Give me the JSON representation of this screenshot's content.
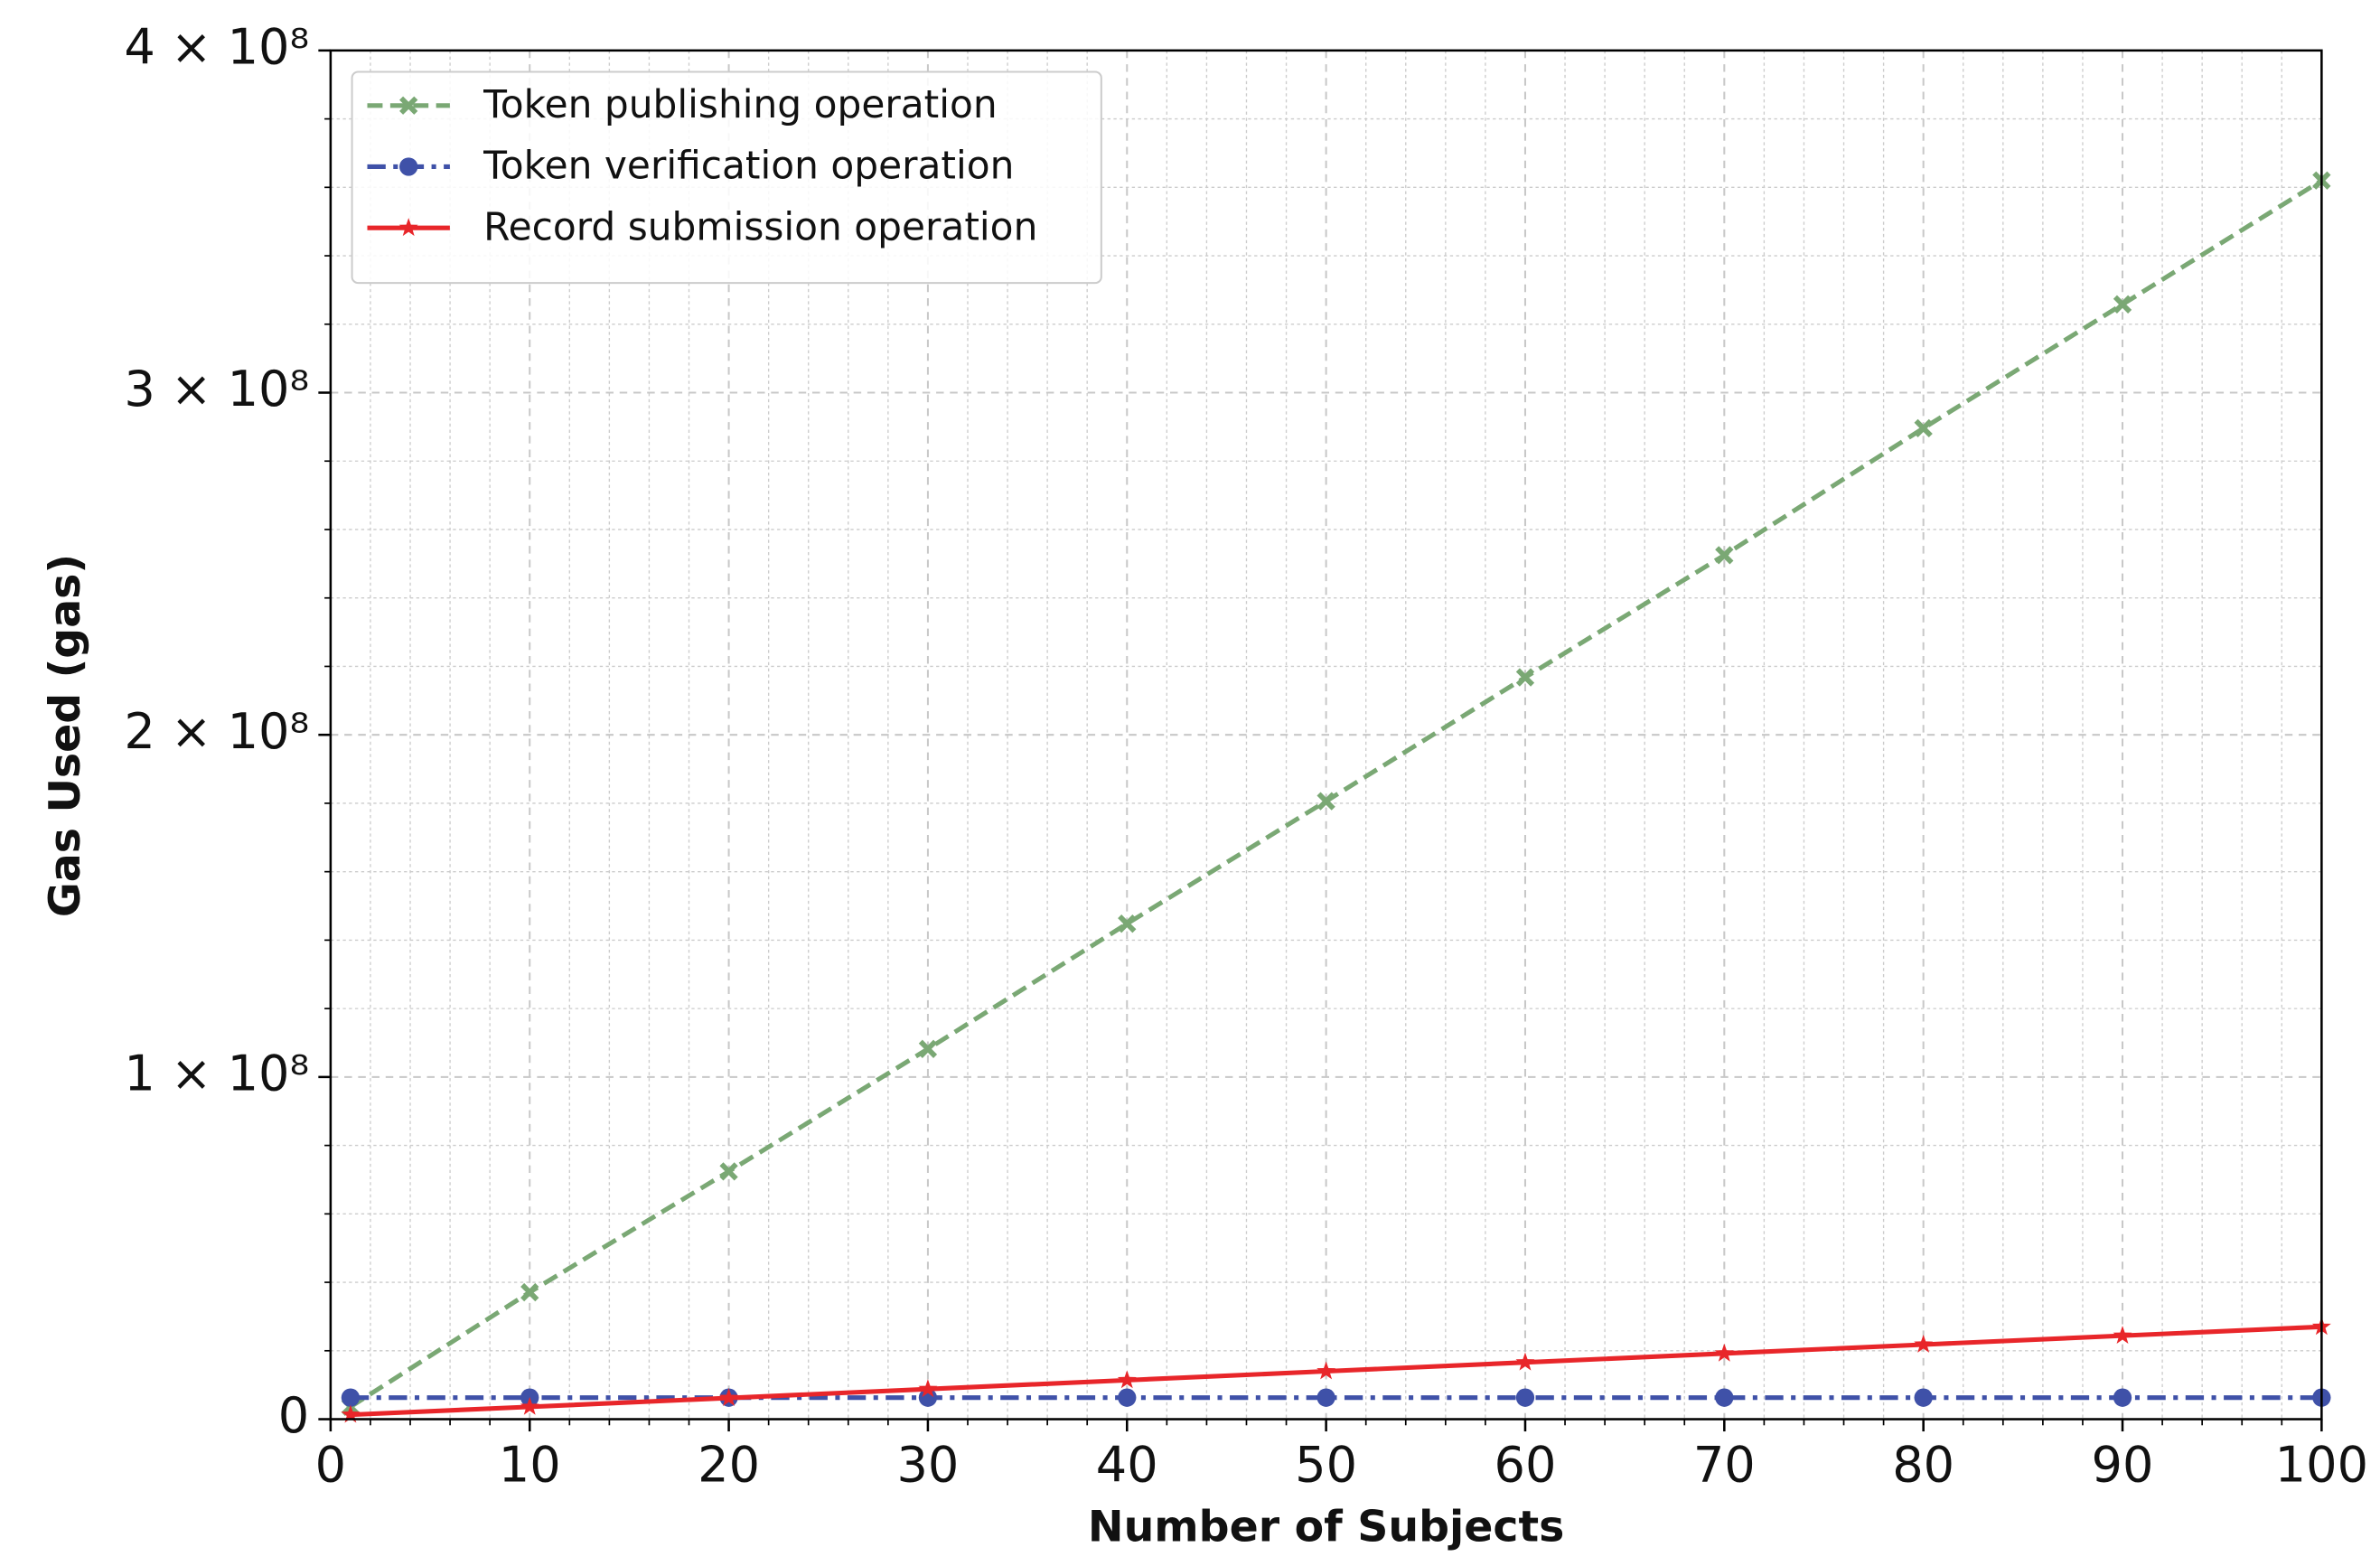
{
  "chart_data": {
    "type": "line",
    "x_label": "Number of Subjects",
    "y_label": "Gas Used (gas)",
    "x": [
      1,
      10,
      20,
      30,
      40,
      50,
      60,
      70,
      80,
      90,
      100
    ],
    "series": [
      {
        "name": "Token publishing operation",
        "color": "#7aa874",
        "style": "dashed",
        "marker": "x",
        "values": [
          3620000,
          37100000,
          72400000,
          108200000,
          144800000,
          180600000,
          216800000,
          252500000,
          289600000,
          325800000,
          362000000
        ]
      },
      {
        "name": "Token verification operation",
        "color": "#3f51a8",
        "style": "dashdot",
        "marker": "circle",
        "values": [
          6300000,
          6300000,
          6300000,
          6300000,
          6300000,
          6300000,
          6300000,
          6300000,
          6300000,
          6300000,
          6300000
        ]
      },
      {
        "name": "Record submission operation",
        "color": "#e8262a",
        "style": "solid",
        "marker": "star",
        "values": [
          1300000,
          3600000,
          6200000,
          8800000,
          11400000,
          14000000,
          16600000,
          19200000,
          21800000,
          24400000,
          27000000
        ]
      }
    ],
    "xlim": [
      0,
      100
    ],
    "ylim": [
      0,
      400000000
    ],
    "xticks": [
      0,
      10,
      20,
      30,
      40,
      50,
      60,
      70,
      80,
      90,
      100
    ],
    "yticks": [
      0,
      {
        "value": 100000000,
        "label": "1 × 10⁸"
      },
      {
        "value": 200000000,
        "label": "2 × 10⁸"
      },
      {
        "value": 300000000,
        "label": "3 × 10⁸"
      },
      {
        "value": 400000000,
        "label": "4 × 10⁸"
      }
    ],
    "x_minor_ticks": [
      2,
      4,
      6,
      8,
      12,
      14,
      16,
      18,
      22,
      24,
      26,
      28,
      32,
      34,
      36,
      38,
      42,
      44,
      46,
      48,
      52,
      54,
      56,
      58,
      62,
      64,
      66,
      68,
      72,
      74,
      76,
      78,
      82,
      84,
      86,
      88,
      92,
      94,
      96,
      98
    ],
    "y_minor_ticks": [
      20000000,
      40000000,
      60000000,
      80000000,
      120000000,
      140000000,
      160000000,
      180000000,
      220000000,
      240000000,
      260000000,
      280000000,
      320000000,
      340000000,
      360000000,
      380000000
    ],
    "grid": true,
    "legend": "upper-left"
  }
}
